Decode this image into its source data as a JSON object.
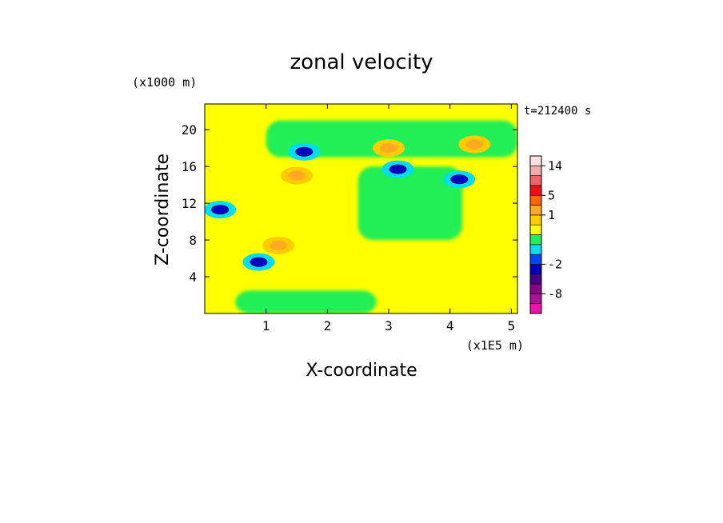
{
  "chart_data": {
    "type": "heatmap",
    "title": "zonal velocity",
    "xlabel": "X-coordinate",
    "ylabel": "Z-coordinate",
    "x_unit_label": "(x1E5 m)",
    "y_unit_label": "(x1000 m)",
    "time_label": "t=212400 s",
    "xlim": [
      0,
      5.1
    ],
    "ylim": [
      0,
      22.8
    ],
    "x_ticks": [
      1,
      2,
      3,
      4,
      5
    ],
    "y_ticks": [
      4,
      8,
      12,
      16,
      20
    ],
    "colorbar": {
      "levels": [
        {
          "from": -14,
          "to": -10,
          "color": "#ee11aa"
        },
        {
          "from": -10,
          "to": -8,
          "color": "#aa1199"
        },
        {
          "from": -8,
          "to": -6,
          "color": "#880088"
        },
        {
          "from": -6,
          "to": -4,
          "color": "#440088"
        },
        {
          "from": -4,
          "to": -2,
          "color": "#0000bb"
        },
        {
          "from": -2,
          "to": -1,
          "color": "#0044ff"
        },
        {
          "from": -1,
          "to": -0.5,
          "color": "#00ddee"
        },
        {
          "from": -0.5,
          "to": 0,
          "color": "#22ee55"
        },
        {
          "from": 0,
          "to": 0.5,
          "color": "#ffff00"
        },
        {
          "from": 0.5,
          "to": 1,
          "color": "#ffcc00"
        },
        {
          "from": 1,
          "to": 2,
          "color": "#ffaa22"
        },
        {
          "from": 2,
          "to": 5,
          "color": "#ff6600"
        },
        {
          "from": 5,
          "to": 8,
          "color": "#ee1111"
        },
        {
          "from": 8,
          "to": 11,
          "color": "#ee6666"
        },
        {
          "from": 11,
          "to": 14,
          "color": "#f3aaaa"
        },
        {
          "from": 14,
          "to": 17,
          "color": "#ffe0e0"
        }
      ],
      "tick_labels": [
        "14",
        "5",
        "1",
        "-2",
        "-8"
      ]
    },
    "field_features": [
      {
        "kind": "background",
        "value": 0.3,
        "note": "yellow (0 to 0.5 m/s) dominant"
      },
      {
        "kind": "band",
        "value": -0.3,
        "z_range": [
          17,
          21
        ],
        "x_range": [
          1.0,
          5.1
        ]
      },
      {
        "kind": "band",
        "value": -0.3,
        "z_range": [
          0,
          2.5
        ],
        "x_range": [
          0.5,
          2.8
        ]
      },
      {
        "kind": "band",
        "value": -0.3,
        "z_range": [
          8,
          16
        ],
        "x_range": [
          2.5,
          4.2
        ]
      },
      {
        "kind": "blob",
        "value": -3,
        "x": 1.62,
        "z": 17.6
      },
      {
        "kind": "blob",
        "value": -3,
        "x": 3.15,
        "z": 15.7
      },
      {
        "kind": "blob",
        "value": -3,
        "x": 4.15,
        "z": 14.6
      },
      {
        "kind": "blob",
        "value": -3,
        "x": 0.25,
        "z": 11.3
      },
      {
        "kind": "blob",
        "value": -3,
        "x": 0.88,
        "z": 5.6
      },
      {
        "kind": "blob",
        "value": 1.5,
        "x": 1.5,
        "z": 15.0
      },
      {
        "kind": "blob",
        "value": 1.5,
        "x": 3.0,
        "z": 18.0
      },
      {
        "kind": "blob",
        "value": 1.5,
        "x": 4.4,
        "z": 18.4
      },
      {
        "kind": "blob",
        "value": 1.5,
        "x": 1.2,
        "z": 7.4
      }
    ]
  }
}
